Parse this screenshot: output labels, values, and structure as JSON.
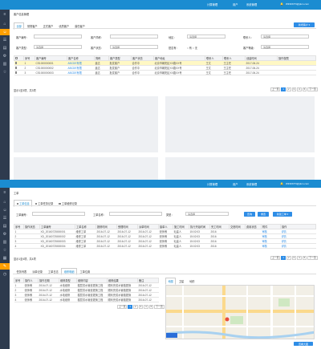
{
  "app": {
    "brand": "WiNDKTN@pkm.com",
    "top_links": [
      "计算管理",
      "用户",
      "系统管理"
    ]
  },
  "screen1": {
    "breadcrumb": "客户信息管理",
    "tabs": [
      "全部",
      "常规客户",
      "正式客户",
      "优质客户",
      "潜在客户"
    ],
    "new_button": "新增客户 ▾",
    "form": {
      "row1": [
        {
          "label": "客户编号：",
          "value": ""
        },
        {
          "label": "客户简称：",
          "value": ""
        },
        {
          "label": "地区：",
          "value": "请选择"
        },
        {
          "label": "联系人：",
          "value": "请选择"
        }
      ],
      "row2": [
        {
          "label": "客户类型：",
          "value": "请选择"
        },
        {
          "label": "客户状态：",
          "value": "请选择"
        },
        {
          "label": "是否有：",
          "value": "○ 有   ○ 无"
        },
        {
          "label": "客户等级：",
          "value": "请选择"
        }
      ]
    },
    "table": {
      "headers": [
        "",
        "序号",
        "客户编号",
        "客户名称",
        "简称",
        "客户类型",
        "客户状态",
        "客户地址",
        "联系人",
        "联系人",
        "创建时间",
        "操作权限"
      ],
      "rows": [
        [
          "",
          "1",
          "CS1000000001",
          "ABCDE有限",
          "鑫达",
          "批发客户",
          "合作中",
          "北京市朝阳区XX路XX号",
          "王文",
          "王主任",
          "2017-06-24",
          ""
        ],
        [
          "",
          "2",
          "CS1000000002",
          "ABCDE有限",
          "鑫达",
          "批发客户",
          "合作中",
          "北京市朝阳区XX路XX号",
          "王文",
          "王主任",
          "2017-06-24",
          ""
        ],
        [
          "",
          "3",
          "CS1000000003",
          "ABCDE有限",
          "鑫达",
          "批发客户",
          "合作中",
          "北京市朝阳区XX路XX号",
          "王文",
          "王主任",
          "2017-06-24",
          ""
        ]
      ]
    },
    "footer_info": "显示1至3项，共3项",
    "pager": [
      "上一页",
      "1",
      "2",
      "3",
      "4",
      "5",
      "下一页"
    ]
  },
  "screen2": {
    "breadcrumb": "工单",
    "tabs": [
      "工单信息",
      "工单任务记录",
      "工单维修记录"
    ],
    "form": {
      "fields": [
        {
          "label": "工单编号：",
          "value": ""
        },
        {
          "label": "工单名称：",
          "value": ""
        },
        {
          "label": "类型：",
          "value": "请选择"
        }
      ],
      "buttons": [
        "查询",
        "重置",
        "新建工单 ▾"
      ]
    },
    "table": {
      "headers": [
        "序号",
        "操作状态",
        "工单编号",
        "工单名称",
        "报修时间",
        "受理时间",
        "派单时间",
        "接单人",
        "施工时间",
        "执行开始时间",
        "完工时间",
        "交底时间",
        "费用状态",
        "附件",
        "操作"
      ],
      "rows": [
        [
          "1",
          "",
          "XD_20160725000001",
          "维修工单",
          "2016-07-12",
          "2016-07-12",
          "2016-07-12",
          "张师傅",
          "毛建人",
          "15:02:03",
          "2016",
          "",
          "",
          "审核",
          "详情"
        ],
        [
          "2",
          "",
          "XD_20160725000002",
          "维修工单",
          "2016-07-12",
          "2016-07-12",
          "2016-07-12",
          "张师傅",
          "毛建人",
          "15:02:03",
          "2016",
          "",
          "",
          "审核",
          "详情"
        ],
        [
          "3",
          "",
          "XD_20160725000003",
          "维修工单",
          "2016-07-12",
          "2016-07-12",
          "2016-07-12",
          "张师傅",
          "毛建人",
          "15:02:03",
          "2016",
          "",
          "",
          "审核",
          "详情"
        ],
        [
          "4",
          "",
          "XD_20160725000004",
          "维修工单",
          "2016-07-12",
          "2016-07-12",
          "2016-07-12",
          "张师傅",
          "毛建人",
          "15:02:03",
          "2016",
          "",
          "",
          "审核",
          "详情"
        ]
      ]
    },
    "footer_info": "显示1至4项，共4项",
    "pager": [
      "上一页",
      "1",
      "2",
      "3",
      "4",
      "5",
      "下一页"
    ],
    "bottom_tabs": [
      "任务列表",
      "派单记录",
      "工单日志",
      "维修明细",
      "工单位置"
    ],
    "detail_table": {
      "headers": [
        "序号",
        "操作人",
        "操作日期",
        "维修类型",
        "维修内容",
        "维修结果",
        "备注"
      ],
      "rows": [
        [
          "1",
          "张师傅",
          "2016-07-12",
          "水电维修",
          "楼层供水管道更换工程",
          "顺利完成水管路更换",
          "2016-07-12"
        ],
        [
          "2",
          "张师傅",
          "2016-07-12",
          "水电维修",
          "楼层供水管道更换工程",
          "顺利完成水管路更换",
          "2016-07-12"
        ],
        [
          "3",
          "张师傅",
          "2016-07-12",
          "水电维修",
          "楼层供水管道更换工程",
          "顺利完成水管路更换",
          "2016-07-12"
        ],
        [
          "4",
          "张师傅",
          "2016-07-12",
          "水电维修",
          "楼层供水管道更换工程",
          "顺利完成水管路更换",
          "2016-07-12"
        ]
      ]
    },
    "detail_pager": [
      "上一页",
      "1",
      "2",
      "3",
      "4",
      "5",
      "下一页"
    ],
    "map_tabs": [
      "地图",
      "卫星",
      "地形"
    ],
    "map_button": "查看大图"
  }
}
